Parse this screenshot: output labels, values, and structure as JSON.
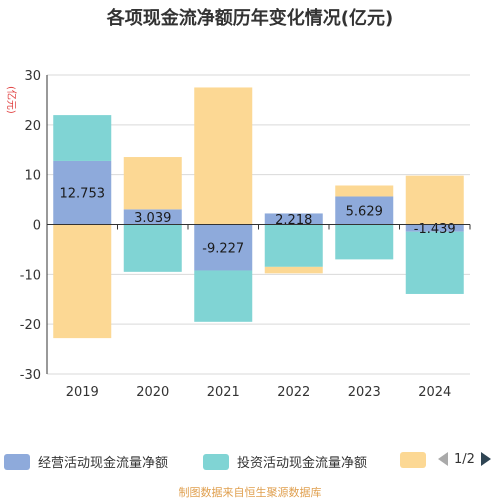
{
  "chart_data": {
    "type": "bar",
    "stacked": true,
    "title": "各项现金流净额历年变化情况(亿元)",
    "ylabel": "(亿元)",
    "categories": [
      "2019",
      "2020",
      "2021",
      "2022",
      "2023",
      "2024"
    ],
    "ylim": [
      -30,
      30
    ],
    "yticks": [
      30,
      20,
      10,
      0,
      -10,
      -20,
      -30
    ],
    "grid": true,
    "series": [
      {
        "name": "经营活动现金流量净额",
        "color": "#8eaadb",
        "values": [
          12.753,
          3.039,
          -9.227,
          2.218,
          5.629,
          -1.439
        ]
      },
      {
        "name": "投资活动现金流量净额",
        "color": "#80d4d4",
        "values": [
          9.2,
          -9.5,
          -10.3,
          -8.5,
          -7.0,
          -12.5
        ]
      },
      {
        "name": "",
        "color": "#fcd894",
        "values": [
          -22.8,
          10.5,
          27.5,
          -1.3,
          2.2,
          9.8
        ]
      }
    ],
    "data_labels": [
      "12.753",
      "3.039",
      "-9.227",
      "2.218",
      "5.629",
      "-1.439"
    ]
  },
  "legend": {
    "pager_text": "1/2"
  },
  "source": "制图数据来自恒生聚源数据库"
}
